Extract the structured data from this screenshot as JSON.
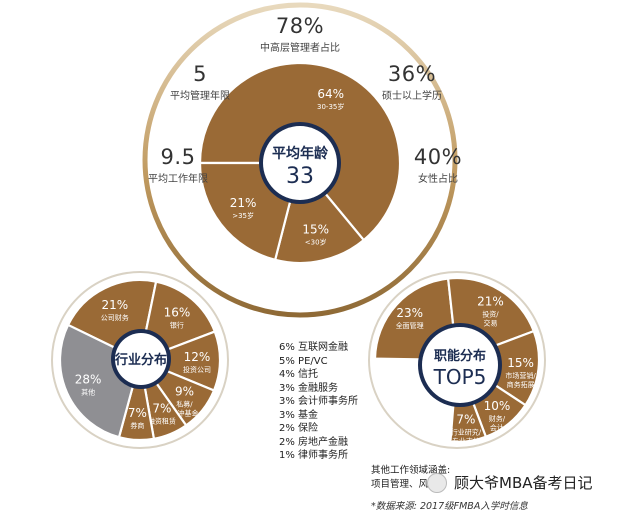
{
  "top": {
    "managers_pct": "78%",
    "managers_label": "中高层管理者占比",
    "mgmt_years": "5",
    "mgmt_years_label": "平均管理年限",
    "master_pct": "36%",
    "master_label": "硕士以上学历",
    "work_years": "9.5",
    "work_years_label": "平均工作年限",
    "female_pct": "40%",
    "female_label": "女性占比",
    "age_title": "平均年龄",
    "age_value": "33",
    "segments": [
      {
        "pct": "64%",
        "label": "30-35岁"
      },
      {
        "pct": "15%",
        "label": "<30岁"
      },
      {
        "pct": "21%",
        "label": ">35岁"
      }
    ]
  },
  "industry": {
    "title": "行业分布",
    "segments": [
      {
        "pct": "21%",
        "label": "公司财务"
      },
      {
        "pct": "16%",
        "label": "银行"
      },
      {
        "pct": "12%",
        "label": "投资公司"
      },
      {
        "pct": "9%",
        "label": "私募/对冲基金"
      },
      {
        "pct": "7%",
        "label": "融资租赁"
      },
      {
        "pct": "7%",
        "label": "券商"
      },
      {
        "pct": "28%",
        "label": "其他"
      }
    ]
  },
  "other_list": [
    "6% 互联网金融",
    "5% PE/VC",
    "4% 信托",
    "3% 金融服务",
    "3% 会计师事务所",
    "3% 基金",
    "2% 保险",
    "2% 房地产金融",
    "1% 律师事务所"
  ],
  "function": {
    "title": "职能分布",
    "subtitle": "TOP5",
    "segments": [
      {
        "pct": "23%",
        "label": "全面管理"
      },
      {
        "pct": "21%",
        "label": "投资/交易"
      },
      {
        "pct": "15%",
        "label": "市场营销/商务拓展"
      },
      {
        "pct": "10%",
        "label": "财务/会计"
      },
      {
        "pct": "7%",
        "label": "行业研究/专业支持"
      }
    ]
  },
  "notes": {
    "other_fields_title": "其他工作领域涵盖:",
    "other_fields_text": "项目管理、风险管",
    "source": "*数据来源: 2017级FMBA入学时信息",
    "watermark": "顾大爷MBA备考日记"
  },
  "colors": {
    "brown": "#9a6a36",
    "gray": "#8f8f93",
    "navy": "#1c2d52",
    "ring_gold": "#c6a56e"
  }
}
